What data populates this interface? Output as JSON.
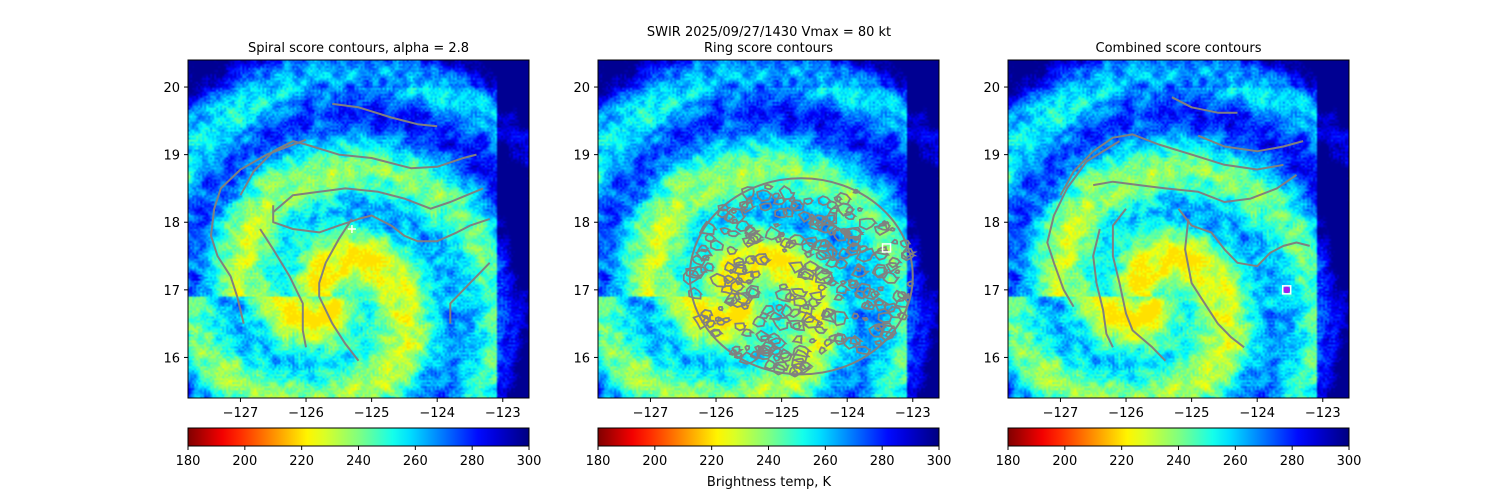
{
  "figure": {
    "suptitle_line1": "SWIR  2025/09/27/1430    Vmax = 80 kt",
    "colorbar_label": "Brightness temp, K"
  },
  "chart_data": [
    {
      "type": "heatmap",
      "title": "Spiral score contours, alpha =  2.8",
      "xlim": [
        -127.8,
        -122.6
      ],
      "ylim": [
        15.4,
        20.4
      ],
      "xticks": [
        -127,
        -126,
        -125,
        -124,
        -123
      ],
      "xtick_labels": [
        "−127",
        "−126",
        "−125",
        "−124",
        "−123"
      ],
      "yticks": [
        16,
        17,
        18,
        19,
        20
      ],
      "ytick_labels": [
        "16",
        "17",
        "18",
        "19",
        "20"
      ],
      "colorbar": {
        "cmap": "jet_r",
        "range": [
          180,
          300
        ],
        "ticks": [
          180,
          200,
          220,
          240,
          260,
          280,
          300
        ],
        "tick_labels": [
          "180",
          "200",
          "220",
          "240",
          "260",
          "280",
          "300"
        ]
      },
      "contour_color": "#808080",
      "center_marker": {
        "lon": -125.3,
        "lat": 17.9,
        "symbol": "+",
        "color": "#ffffff"
      },
      "contours": [
        [
          [
            -125.6,
            19.75
          ],
          [
            -125.2,
            19.7
          ],
          [
            -124.7,
            19.55
          ],
          [
            -124.3,
            19.45
          ],
          [
            -124.0,
            19.42
          ]
        ],
        [
          [
            -127.0,
            18.4
          ],
          [
            -126.8,
            18.75
          ],
          [
            -126.5,
            19.05
          ],
          [
            -126.2,
            19.2
          ],
          [
            -126.0,
            19.15
          ],
          [
            -125.5,
            19.0
          ],
          [
            -125.0,
            18.95
          ],
          [
            -124.4,
            18.8
          ],
          [
            -124.0,
            18.82
          ],
          [
            -123.6,
            18.95
          ],
          [
            -123.4,
            19.0
          ]
        ],
        [
          [
            -126.5,
            18.15
          ],
          [
            -126.2,
            18.4
          ],
          [
            -125.8,
            18.45
          ],
          [
            -125.4,
            18.5
          ],
          [
            -124.9,
            18.45
          ],
          [
            -124.5,
            18.35
          ],
          [
            -124.1,
            18.2
          ],
          [
            -123.8,
            18.3
          ],
          [
            -123.5,
            18.42
          ],
          [
            -123.3,
            18.5
          ]
        ],
        [
          [
            -126.5,
            18.25
          ],
          [
            -126.5,
            18.0
          ],
          [
            -126.2,
            17.9
          ],
          [
            -125.8,
            17.85
          ],
          [
            -125.5,
            17.95
          ],
          [
            -125.2,
            18.05
          ],
          [
            -125.0,
            18.1
          ],
          [
            -124.7,
            17.95
          ],
          [
            -124.5,
            17.8
          ],
          [
            -124.3,
            17.72
          ],
          [
            -124.0,
            17.72
          ],
          [
            -123.7,
            17.85
          ],
          [
            -123.5,
            17.95
          ],
          [
            -123.2,
            18.05
          ]
        ],
        [
          [
            -125.3,
            18.05
          ],
          [
            -125.5,
            17.75
          ],
          [
            -125.7,
            17.4
          ],
          [
            -125.8,
            17.1
          ],
          [
            -125.8,
            16.9
          ],
          [
            -125.6,
            16.5
          ],
          [
            -125.4,
            16.2
          ],
          [
            -125.2,
            15.95
          ]
        ],
        [
          [
            -126.7,
            17.9
          ],
          [
            -126.5,
            17.6
          ],
          [
            -126.25,
            17.2
          ],
          [
            -126.05,
            16.8
          ],
          [
            -126.05,
            16.4
          ],
          [
            -126.0,
            16.15
          ]
        ],
        [
          [
            -126.0,
            19.22
          ],
          [
            -126.6,
            19.0
          ],
          [
            -127.0,
            18.78
          ],
          [
            -127.3,
            18.5
          ],
          [
            -127.4,
            18.2
          ],
          [
            -127.45,
            17.8
          ],
          [
            -127.35,
            17.5
          ],
          [
            -127.15,
            17.2
          ],
          [
            -127.05,
            16.9
          ],
          [
            -126.95,
            16.5
          ]
        ],
        [
          [
            -123.2,
            17.4
          ],
          [
            -123.5,
            17.1
          ],
          [
            -123.8,
            16.8
          ],
          [
            -123.8,
            16.5
          ]
        ]
      ]
    },
    {
      "type": "heatmap",
      "title": "Ring score contours",
      "xlim": [
        -127.8,
        -122.6
      ],
      "ylim": [
        15.4,
        20.4
      ],
      "xticks": [
        -127,
        -126,
        -125,
        -124,
        -123
      ],
      "xtick_labels": [
        "−127",
        "−126",
        "−125",
        "−124",
        "−123"
      ],
      "yticks": [
        16,
        17,
        18,
        19,
        20
      ],
      "ytick_labels": [
        "16",
        "17",
        "18",
        "19",
        "20"
      ],
      "colorbar": {
        "cmap": "jet_r",
        "range": [
          180,
          300
        ],
        "ticks": [
          180,
          200,
          220,
          240,
          260,
          280,
          300
        ],
        "tick_labels": [
          "180",
          "200",
          "220",
          "240",
          "260",
          "280",
          "300"
        ]
      },
      "contour_color": "#808080",
      "ring_region": {
        "center_lon": -124.7,
        "center_lat": 17.2,
        "radius_lon": 1.7,
        "radius_lat": 1.45
      },
      "center_marker": {
        "lon": -123.4,
        "lat": 17.62,
        "symbol": "square",
        "color": "#ffffff"
      }
    },
    {
      "type": "heatmap",
      "title": "Combined score contours",
      "xlim": [
        -127.8,
        -122.6
      ],
      "ylim": [
        15.4,
        20.4
      ],
      "xticks": [
        -127,
        -126,
        -125,
        -124,
        -123
      ],
      "xtick_labels": [
        "−127",
        "−126",
        "−125",
        "−124",
        "−123"
      ],
      "yticks": [
        16,
        17,
        18,
        19,
        20
      ],
      "ytick_labels": [
        "16",
        "17",
        "18",
        "19",
        "20"
      ],
      "colorbar": {
        "cmap": "jet_r",
        "range": [
          180,
          300
        ],
        "ticks": [
          180,
          200,
          220,
          240,
          260,
          280,
          300
        ],
        "tick_labels": [
          "180",
          "200",
          "220",
          "240",
          "260",
          "280",
          "300"
        ]
      },
      "contour_color": "#808080",
      "center_marker": {
        "lon": -123.55,
        "lat": 17.0,
        "symbol": "square",
        "color": "#ffffff",
        "inner_color": "#a020f0"
      },
      "contours": [
        [
          [
            -125.3,
            19.85
          ],
          [
            -125.0,
            19.7
          ],
          [
            -124.6,
            19.62
          ],
          [
            -124.3,
            19.62
          ]
        ],
        [
          [
            -124.9,
            19.28
          ],
          [
            -124.5,
            19.12
          ],
          [
            -124.0,
            19.05
          ],
          [
            -123.6,
            19.12
          ],
          [
            -123.3,
            19.2
          ]
        ],
        [
          [
            -127.0,
            18.4
          ],
          [
            -126.8,
            18.75
          ],
          [
            -126.5,
            19.05
          ],
          [
            -126.2,
            19.25
          ],
          [
            -125.9,
            19.3
          ],
          [
            -125.5,
            19.15
          ],
          [
            -125.0,
            19.0
          ],
          [
            -124.5,
            18.85
          ],
          [
            -124.0,
            18.78
          ],
          [
            -123.6,
            18.85
          ]
        ],
        [
          [
            -126.5,
            18.55
          ],
          [
            -126.2,
            18.6
          ],
          [
            -125.8,
            18.55
          ],
          [
            -125.4,
            18.5
          ],
          [
            -124.9,
            18.45
          ],
          [
            -124.5,
            18.3
          ],
          [
            -124.1,
            18.35
          ],
          [
            -123.7,
            18.5
          ],
          [
            -123.4,
            18.7
          ]
        ],
        [
          [
            -126.0,
            18.2
          ],
          [
            -126.2,
            17.95
          ],
          [
            -126.2,
            17.5
          ],
          [
            -126.1,
            17.1
          ],
          [
            -126.0,
            16.65
          ],
          [
            -125.9,
            16.4
          ],
          [
            -125.6,
            16.15
          ],
          [
            -125.4,
            15.95
          ]
        ],
        [
          [
            -125.2,
            18.2
          ],
          [
            -125.0,
            17.95
          ],
          [
            -124.7,
            17.85
          ],
          [
            -124.5,
            17.6
          ],
          [
            -124.3,
            17.4
          ],
          [
            -124.0,
            17.35
          ],
          [
            -123.8,
            17.55
          ],
          [
            -123.6,
            17.65
          ],
          [
            -123.4,
            17.7
          ],
          [
            -123.2,
            17.65
          ]
        ],
        [
          [
            -125.05,
            18.05
          ],
          [
            -125.1,
            17.6
          ],
          [
            -125.0,
            17.1
          ],
          [
            -124.8,
            16.8
          ],
          [
            -124.6,
            16.5
          ],
          [
            -124.4,
            16.3
          ],
          [
            -124.2,
            16.15
          ]
        ],
        [
          [
            -126.4,
            17.9
          ],
          [
            -126.5,
            17.5
          ],
          [
            -126.45,
            17.1
          ],
          [
            -126.35,
            16.7
          ],
          [
            -126.3,
            16.35
          ],
          [
            -126.2,
            16.15
          ]
        ],
        [
          [
            -126.1,
            19.2
          ],
          [
            -126.6,
            18.9
          ],
          [
            -126.9,
            18.5
          ],
          [
            -127.1,
            18.1
          ],
          [
            -127.2,
            17.7
          ],
          [
            -127.1,
            17.4
          ],
          [
            -126.95,
            17.0
          ],
          [
            -126.8,
            16.75
          ]
        ]
      ]
    }
  ]
}
